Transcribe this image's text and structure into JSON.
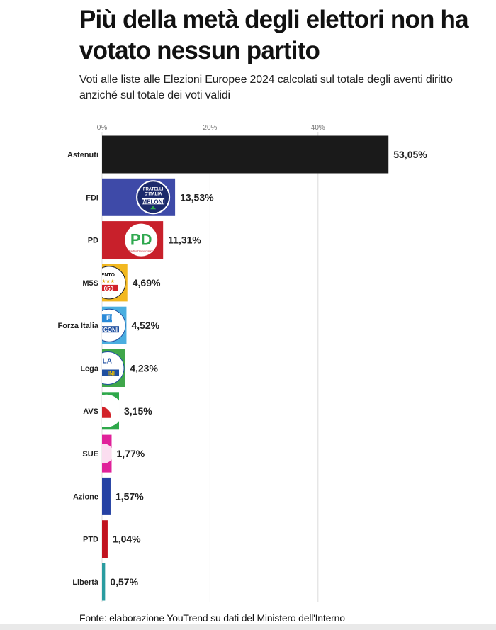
{
  "title": "Più della metà degli elettori non ha votato nessun partito",
  "subtitle": "Voti alle liste alle Elezioni Europee 2024 calcolati sul totale degli aventi diritto anziché sul totale dei voti validi",
  "source": "Fonte: elaborazione YouTrend su dati del Ministero dell'Interno",
  "chart_data": {
    "type": "bar",
    "orientation": "horizontal",
    "categories": [
      "Astenuti",
      "FDI",
      "PD",
      "M5S",
      "Forza Italia",
      "Lega",
      "AVS",
      "SUE",
      "Azione",
      "PTD",
      "Libertà"
    ],
    "values": [
      53.05,
      13.53,
      11.31,
      4.69,
      4.52,
      4.23,
      3.15,
      1.77,
      1.57,
      1.04,
      0.57
    ],
    "value_labels": [
      "53,05%",
      "13,53%",
      "11,31%",
      "4,69%",
      "4,52%",
      "4,23%",
      "3,15%",
      "1,77%",
      "1,57%",
      "1,04%",
      "0,57%"
    ],
    "colors": [
      "#1a1a1a",
      "#3e4aa8",
      "#c8202b",
      "#f2b820",
      "#4aaee0",
      "#3fa64a",
      "#2ea84a",
      "#e0219a",
      "#2541a3",
      "#c1121f",
      "#2a9ca0"
    ],
    "highlight_category": "Astenuti",
    "highlight_color": "#d12b2b",
    "xticks": [
      0,
      20,
      40
    ],
    "xtick_labels": [
      "0%",
      "20%",
      "40%"
    ],
    "xlim": [
      0,
      60
    ],
    "grid": true,
    "logo_text": {
      "FDI": [
        "FRATELLI",
        "D'ITALIA",
        "MELONI"
      ],
      "PD": [
        "PD",
        "Partito Democratico"
      ],
      "M5S": [
        "MENTO",
        "★★★",
        "050"
      ],
      "Forza Italia": [
        "FI",
        "SCONI"
      ],
      "Lega": [
        "LA",
        "INI"
      ]
    }
  }
}
